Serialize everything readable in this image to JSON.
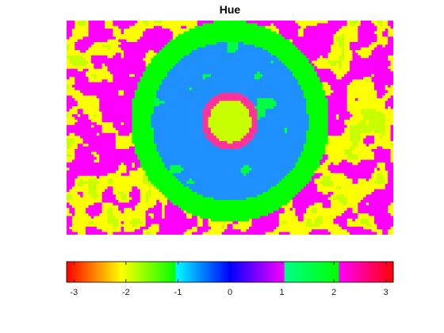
{
  "chart_data": {
    "type": "heatmap",
    "title": "Hue",
    "xlabel": "",
    "ylabel": "",
    "colorbar": {
      "orientation": "horizontal",
      "position": "below",
      "range": [
        -3.1416,
        3.1416
      ],
      "ticks": [
        -3,
        -2,
        -1,
        0,
        1,
        2,
        3
      ],
      "tick_labels": [
        "-3",
        "-2",
        "-1",
        "0",
        "1",
        "2",
        "3"
      ],
      "colormap": "hsv",
      "bands": [
        {
          "from": -3.1416,
          "to": -2.0944,
          "color_from": "#ff0000",
          "color_to": "#ffff00"
        },
        {
          "from": -2.0944,
          "to": -1.0472,
          "color_from": "#ffff00",
          "color_to": "#00ff00"
        },
        {
          "from": -1.0472,
          "to": 0.0,
          "color_from": "#00ffff",
          "color_to": "#0000ff"
        },
        {
          "from": 0.0,
          "to": 1.0472,
          "color_from": "#0000ff",
          "color_to": "#ff00ff"
        },
        {
          "from": 1.0472,
          "to": 2.0944,
          "color_from": "#00ff88",
          "color_to": "#00ff00"
        },
        {
          "from": 2.0944,
          "to": 3.1416,
          "color_from": "#ff00ff",
          "color_to": "#ff0000"
        }
      ]
    },
    "image": {
      "description_colors": {
        "background": "#ff00ff",
        "outer_ring": "#00ff00",
        "inner_disc": "#1e90ff",
        "center": "#c8ff00",
        "center_ring": "#ff00aa"
      },
      "grid_resolution": [
        120,
        80
      ]
    },
    "grid": false
  }
}
